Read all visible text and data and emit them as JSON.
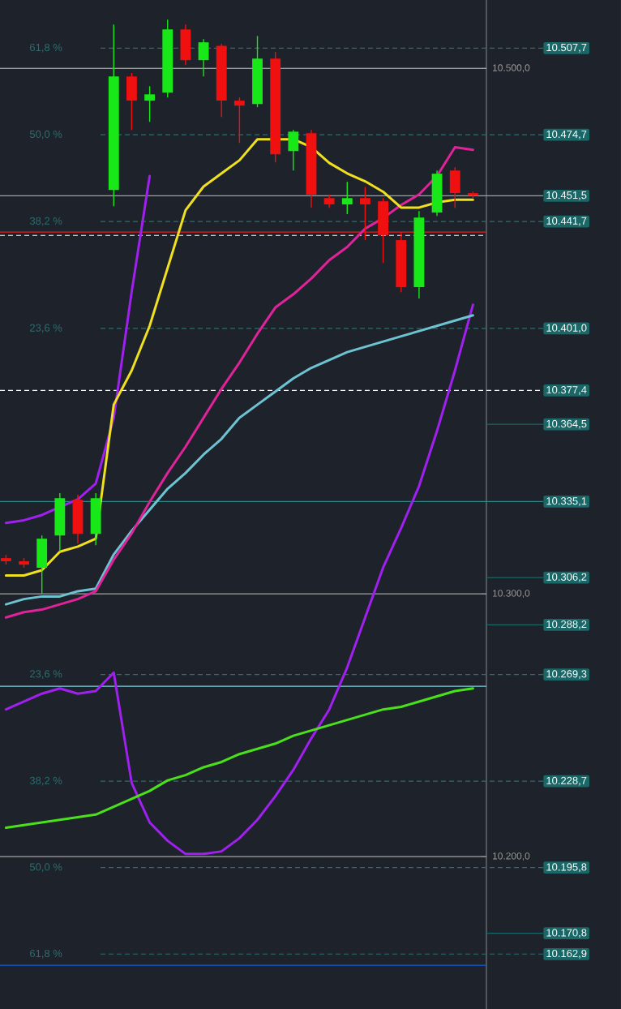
{
  "chart_data": {
    "type": "candlestick",
    "categories": [
      null,
      null,
      null,
      null,
      null,
      null,
      null,
      null,
      null,
      null,
      null,
      null,
      null,
      null,
      null,
      null,
      null,
      null,
      null,
      null,
      null,
      null,
      null,
      null,
      null,
      null,
      null
    ],
    "ohlc": [
      [
        10313.6,
        10314.8,
        10311.1,
        10312.4
      ],
      [
        10312.4,
        10313.6,
        10309.9,
        10311.1
      ],
      [
        10309.9,
        10322.2,
        10300.0,
        10321.0
      ],
      [
        10322.2,
        10338.3,
        10316.1,
        10336.4
      ],
      [
        10335.8,
        10337.7,
        10319.1,
        10322.8
      ],
      [
        10322.8,
        10338.3,
        10318.5,
        10336.4
      ],
      [
        10453.7,
        10516.7,
        10447.5,
        10496.9
      ],
      [
        10496.9,
        10498.2,
        10476.5,
        10487.7
      ],
      [
        10487.7,
        10493.2,
        10479.6,
        10490.1
      ],
      [
        10490.7,
        10518.5,
        10488.9,
        10514.8
      ],
      [
        10514.8,
        10516.7,
        10501.2,
        10503.1
      ],
      [
        10503.1,
        10511.1,
        10496.9,
        10509.9
      ],
      [
        10508.6,
        10509.3,
        10481.5,
        10487.7
      ],
      [
        10487.7,
        10488.9,
        10471.6,
        10485.8
      ],
      [
        10486.4,
        10512.3,
        10485.2,
        10503.7
      ],
      [
        10503.7,
        10506.2,
        10464.2,
        10467.3
      ],
      [
        10468.5,
        10476.5,
        10461.1,
        10475.9
      ],
      [
        10475.3,
        10476.5,
        10446.9,
        10451.9
      ],
      [
        10450.6,
        10451.9,
        10446.9,
        10448.2
      ],
      [
        10448.2,
        10456.8,
        10444.5,
        10450.6
      ],
      [
        10450.6,
        10454.9,
        10434.6,
        10448.2
      ],
      [
        10449.4,
        10450.6,
        10425.9,
        10436.4
      ],
      [
        10434.6,
        10437.7,
        10414.8,
        10416.7
      ],
      [
        10416.7,
        10445.7,
        10412.4,
        10443.2
      ],
      [
        10445.1,
        10461.1,
        10443.8,
        10459.9
      ],
      [
        10461.1,
        10462.3,
        10446.9,
        10452.5
      ],
      [
        10452.5,
        10453.1,
        10450.6,
        10451.5
      ]
    ],
    "series": [
      {
        "type": "line",
        "color": "#a020f0",
        "values": [
          10327,
          10328,
          10330,
          10333,
          10336,
          10342,
          10367,
          10415,
          10459,
          null,
          null,
          null,
          null,
          null,
          null,
          null,
          null,
          null,
          null,
          null,
          null,
          null,
          null,
          null,
          null,
          null,
          null
        ]
      },
      {
        "type": "line",
        "color": "#a020f0",
        "values": [
          10256,
          10259,
          10262,
          10264,
          10262,
          10263,
          10270,
          10228,
          10213,
          10206,
          10201,
          10201,
          10202,
          10207,
          10214,
          10223,
          10233,
          10245,
          10256,
          10272,
          10291,
          10310,
          10325,
          10341,
          10362,
          10385,
          10410
        ]
      },
      {
        "type": "line",
        "color": "#4ae01c",
        "values": [
          10211,
          10212,
          10213,
          10214,
          10215,
          10216,
          10219,
          10222,
          10225,
          10229,
          10231,
          10234,
          10236,
          10239,
          10241,
          10243,
          10246,
          10248,
          10250,
          10252,
          10254,
          10256,
          10257,
          10259,
          10261,
          10263,
          10264
        ]
      },
      {
        "type": "line",
        "color": "#6ec3d2",
        "values": [
          10296,
          10298,
          10299,
          10299,
          10301,
          10302,
          10315,
          10324,
          10332,
          10340,
          10346,
          10353,
          10359,
          10367,
          10372,
          10377,
          10382,
          10386,
          10389,
          10392,
          10394,
          10396,
          10398,
          10400,
          10402,
          10404,
          10406
        ]
      },
      {
        "type": "line",
        "color": "#e0239a",
        "values": [
          10291,
          10293,
          10294,
          10296,
          10298,
          10301,
          10313,
          10323,
          10335,
          10346,
          10356,
          10367,
          10378,
          10388,
          10399,
          10409,
          10414,
          10420,
          10427,
          10432,
          10439,
          10443,
          10448,
          10452,
          10459,
          10470,
          10469
        ]
      },
      {
        "type": "line",
        "color": "#f0e020",
        "values": [
          10307,
          10307,
          10309,
          10316,
          10318,
          10321,
          10372,
          10385,
          10402,
          10424,
          10446,
          10455,
          10460,
          10465,
          10473,
          10473,
          10473,
          10470,
          10464,
          10460,
          10457,
          10453,
          10447,
          10447,
          10449,
          10450,
          10450
        ]
      }
    ],
    "ylim": [
      10142,
      10526
    ],
    "yticks": [
      {
        "value": 10200,
        "label": "10.200,0"
      },
      {
        "value": 10300,
        "label": "10.300,0"
      },
      {
        "value": 10500,
        "label": "10.500,0"
      }
    ],
    "tick_labels": "y",
    "grid": "y",
    "ref_lines": [
      {
        "axis": "y",
        "value": 10507.7,
        "label": "10.507,7",
        "color": "#2c6e70",
        "line_style": "dashed"
      },
      {
        "axis": "y",
        "value": 10474.7,
        "label": "10.474,7",
        "color": "#2c6e70",
        "line_style": "dashed"
      },
      {
        "axis": "y",
        "value": 10441.7,
        "label": "10.441,7",
        "color": "#2c6e70",
        "line_style": "dashed"
      },
      {
        "axis": "y",
        "value": 10401.0,
        "label": "10.401,0",
        "color": "#2c6e70",
        "line_style": "dashed"
      },
      {
        "axis": "y",
        "value": 10335.1,
        "label": "10.335,1",
        "color": "#2c8a8a",
        "line_style": "solid"
      },
      {
        "axis": "y",
        "value": 10269.3,
        "label": "10.269,3",
        "color": "#2c6e70",
        "line_style": "dashed"
      },
      {
        "axis": "y",
        "value": 10228.7,
        "label": "10.228,7",
        "color": "#2c6e70",
        "line_style": "dashed"
      },
      {
        "axis": "y",
        "value": 10195.8,
        "label": "10.195,8",
        "color": "#2c6e70",
        "line_style": "dashed"
      },
      {
        "axis": "y",
        "value": 10162.9,
        "label": "10.162,9",
        "color": "#2c6e70",
        "line_style": "dashed"
      },
      {
        "axis": "y",
        "value": 10451.5,
        "label": "10.451,5",
        "color": "#a0a0a0",
        "line_style": "solid"
      },
      {
        "axis": "y",
        "value": 10437.7,
        "label": null,
        "color": "#e02020",
        "line_style": "solid"
      },
      {
        "axis": "y",
        "value": 10436.4,
        "label": null,
        "color": "#ffffff",
        "line_style": "dashed"
      },
      {
        "axis": "y",
        "value": 10377.4,
        "label": "10.377,4",
        "color": "#ffffff",
        "line_style": "dashed"
      },
      {
        "axis": "y",
        "value": 10364.5,
        "label": "10.364,5",
        "line_style": "solid"
      },
      {
        "axis": "y",
        "value": 10306.2,
        "label": "10.306,2",
        "line_style": "solid"
      },
      {
        "axis": "y",
        "value": 10288.2,
        "label": "10.288,2",
        "line_style": "solid"
      },
      {
        "axis": "y",
        "value": 10170.8,
        "label": "10.170,8",
        "line_style": "solid"
      },
      {
        "axis": "y",
        "value": 10264.8,
        "label": null,
        "color": "#7fd3e0",
        "line_style": "solid"
      },
      {
        "axis": "y",
        "value": 10158.6,
        "label": null,
        "color": "#1060e0",
        "line_style": "solid"
      }
    ],
    "annotations": [
      "61,8 %",
      "50,0 %",
      "38,2 %",
      "23,6 %",
      "23,6 %",
      "38,2 %",
      "50,0 %",
      "61,8 %"
    ]
  }
}
